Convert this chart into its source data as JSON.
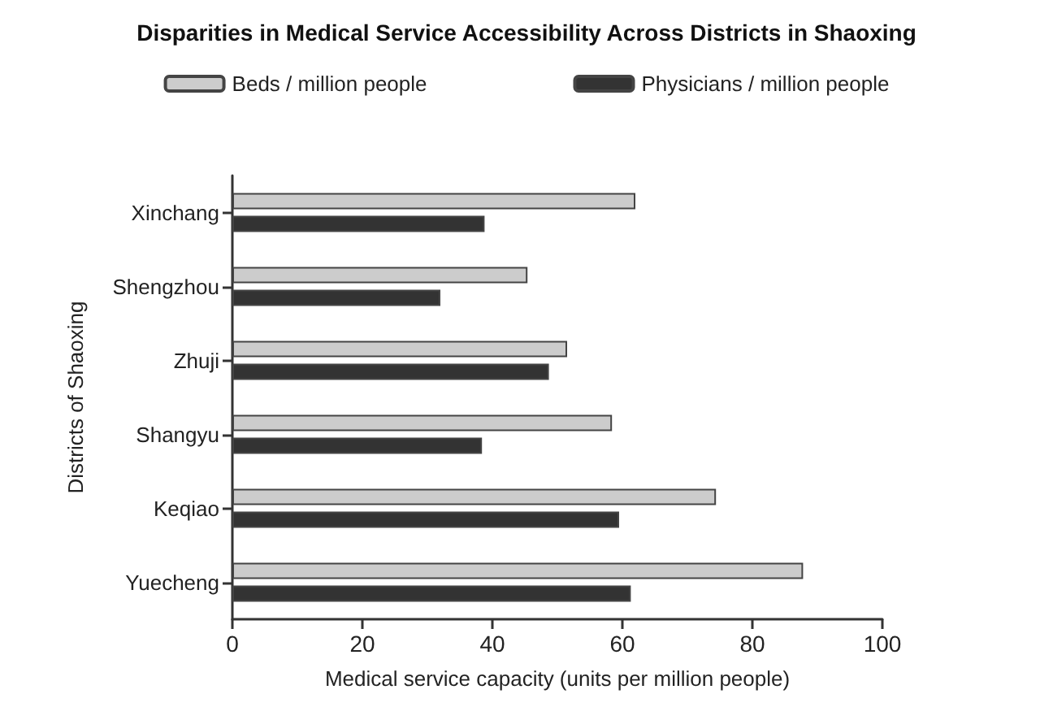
{
  "chart_data": {
    "type": "bar",
    "orientation": "horizontal",
    "title": "Disparities in Medical Service Accessibility Across Districts in Shaoxing",
    "xlabel": "Medical service capacity (units per million people)",
    "ylabel": "Districts of Shaoxing",
    "categories": [
      "Xinchang",
      "Shengzhou",
      "Zhuji",
      "Shangyu",
      "Keqiao",
      "Yuecheng"
    ],
    "series": [
      {
        "name": "Beds / million people",
        "color": "#cccccc",
        "values": [
          62,
          45.4,
          51.5,
          58.4,
          74.4,
          87.8
        ]
      },
      {
        "name": "Physicians / million people",
        "color": "#333333",
        "values": [
          38.8,
          32,
          48.7,
          38.4,
          59.5,
          61.3
        ]
      }
    ],
    "xlim": [
      0,
      100
    ],
    "xticks": [
      0,
      20,
      40,
      60,
      80,
      100
    ],
    "grid": false,
    "legend": "top"
  }
}
